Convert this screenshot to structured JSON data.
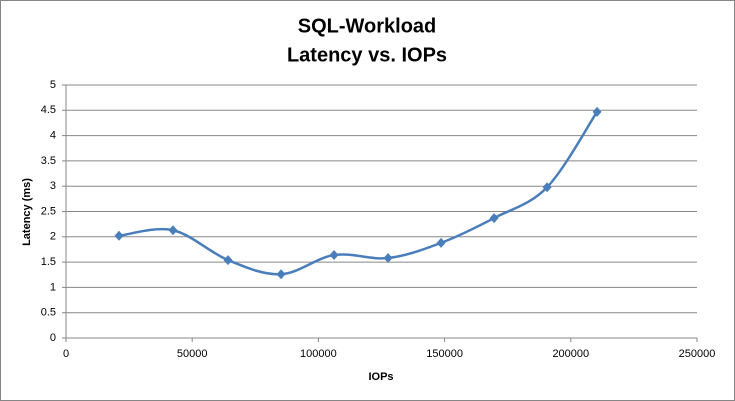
{
  "chart_data": {
    "type": "line",
    "title": "SQL-Workload",
    "subtitle": "Latency vs. IOPs",
    "x_label": "IOPs",
    "y_label": "Latency (ms)",
    "x": [
      21000,
      42400,
      64200,
      85200,
      106200,
      127600,
      148600,
      169600,
      190600,
      210400
    ],
    "values": [
      2.02,
      2.13,
      1.54,
      1.26,
      1.64,
      1.58,
      1.88,
      2.37,
      2.98,
      4.47
    ],
    "color": "#4a7ebb",
    "smooth": true,
    "grid": true,
    "xlim": [
      0,
      250000
    ],
    "xticks": [
      0,
      50000,
      100000,
      150000,
      200000,
      250000
    ],
    "ylim": [
      0,
      5
    ],
    "yticks": [
      0,
      0.5,
      1,
      1.5,
      2,
      2.5,
      3,
      3.5,
      4,
      4.5,
      5
    ]
  }
}
